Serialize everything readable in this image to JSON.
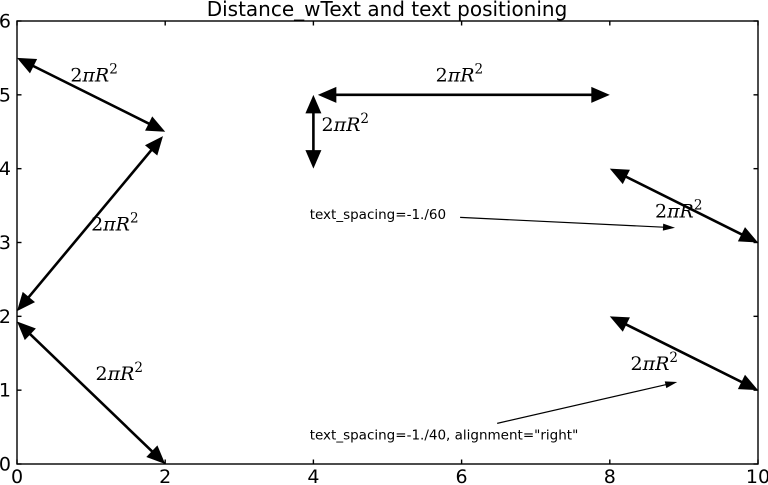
{
  "colors": {
    "foreground": "#000000",
    "background": "#ffffff"
  },
  "chart_data": {
    "type": "line",
    "title": "Distance_wText and text positioning",
    "xlabel": "",
    "ylabel": "",
    "xlim": [
      0,
      10
    ],
    "ylim": [
      0,
      6
    ],
    "grid": false,
    "legend": null,
    "tick_direction": "in",
    "xticks": {
      "values": [
        0,
        2,
        4,
        6,
        8,
        10
      ],
      "labels": [
        "0",
        "2",
        "4",
        "6",
        "8",
        "10"
      ]
    },
    "yticks": {
      "values": [
        0,
        1,
        2,
        3,
        4,
        5,
        6
      ],
      "labels": [
        "0",
        "1",
        "2",
        "3",
        "4",
        "5",
        "6"
      ]
    },
    "distance_label": {
      "coef": "2",
      "variables": "πR",
      "superscript": "2"
    },
    "arrows": [
      {
        "name": "arrow-left-top",
        "x1": 0,
        "y1": 5.5,
        "x2": 2,
        "y2": 4.5,
        "heads": "both",
        "label": {
          "x": 1.04,
          "y": 5.18
        }
      },
      {
        "name": "arrow-left-middle",
        "x1": 1.97,
        "y1": 4.44,
        "x2": 0,
        "y2": 2.07,
        "heads": "both",
        "label": {
          "x": 1.32,
          "y": 3.16
        }
      },
      {
        "name": "arrow-left-bottom",
        "x1": 0,
        "y1": 1.93,
        "x2": 2,
        "y2": 0,
        "heads": "both",
        "label": {
          "x": 1.38,
          "y": 1.14
        }
      },
      {
        "name": "arrow-horizontal",
        "x1": 4.06,
        "y1": 5,
        "x2": 8,
        "y2": 5,
        "heads": "both",
        "label": {
          "x": 5.97,
          "y": 5.18
        }
      },
      {
        "name": "arrow-vertical",
        "x1": 4,
        "y1": 5,
        "x2": 4,
        "y2": 4,
        "heads": "both",
        "label": {
          "x": 4.43,
          "y": 4.51
        }
      },
      {
        "name": "arrow-right-upper",
        "x1": 8,
        "y1": 4,
        "x2": 10,
        "y2": 3,
        "heads": "both",
        "label": {
          "x": 8.93,
          "y": 3.34
        }
      },
      {
        "name": "arrow-right-lower",
        "x1": 8,
        "y1": 2,
        "x2": 10,
        "y2": 1,
        "heads": "both",
        "label": {
          "x": 8.6,
          "y": 1.27
        }
      }
    ],
    "annotations": [
      {
        "name": "annotation-spacing-60",
        "text": "text_spacing=-1./60",
        "text_x": 3.95,
        "text_y": 3.32,
        "arrow": {
          "x1": 5.98,
          "y1": 3.34,
          "x2": 8.88,
          "y2": 3.2
        }
      },
      {
        "name": "annotation-spacing-40",
        "text": "text_spacing=-1./40, alignment=\"right\"",
        "text_x": 3.95,
        "text_y": 0.33,
        "arrow": {
          "x1": 6.48,
          "y1": 0.55,
          "x2": 8.91,
          "y2": 1.11
        }
      }
    ]
  }
}
